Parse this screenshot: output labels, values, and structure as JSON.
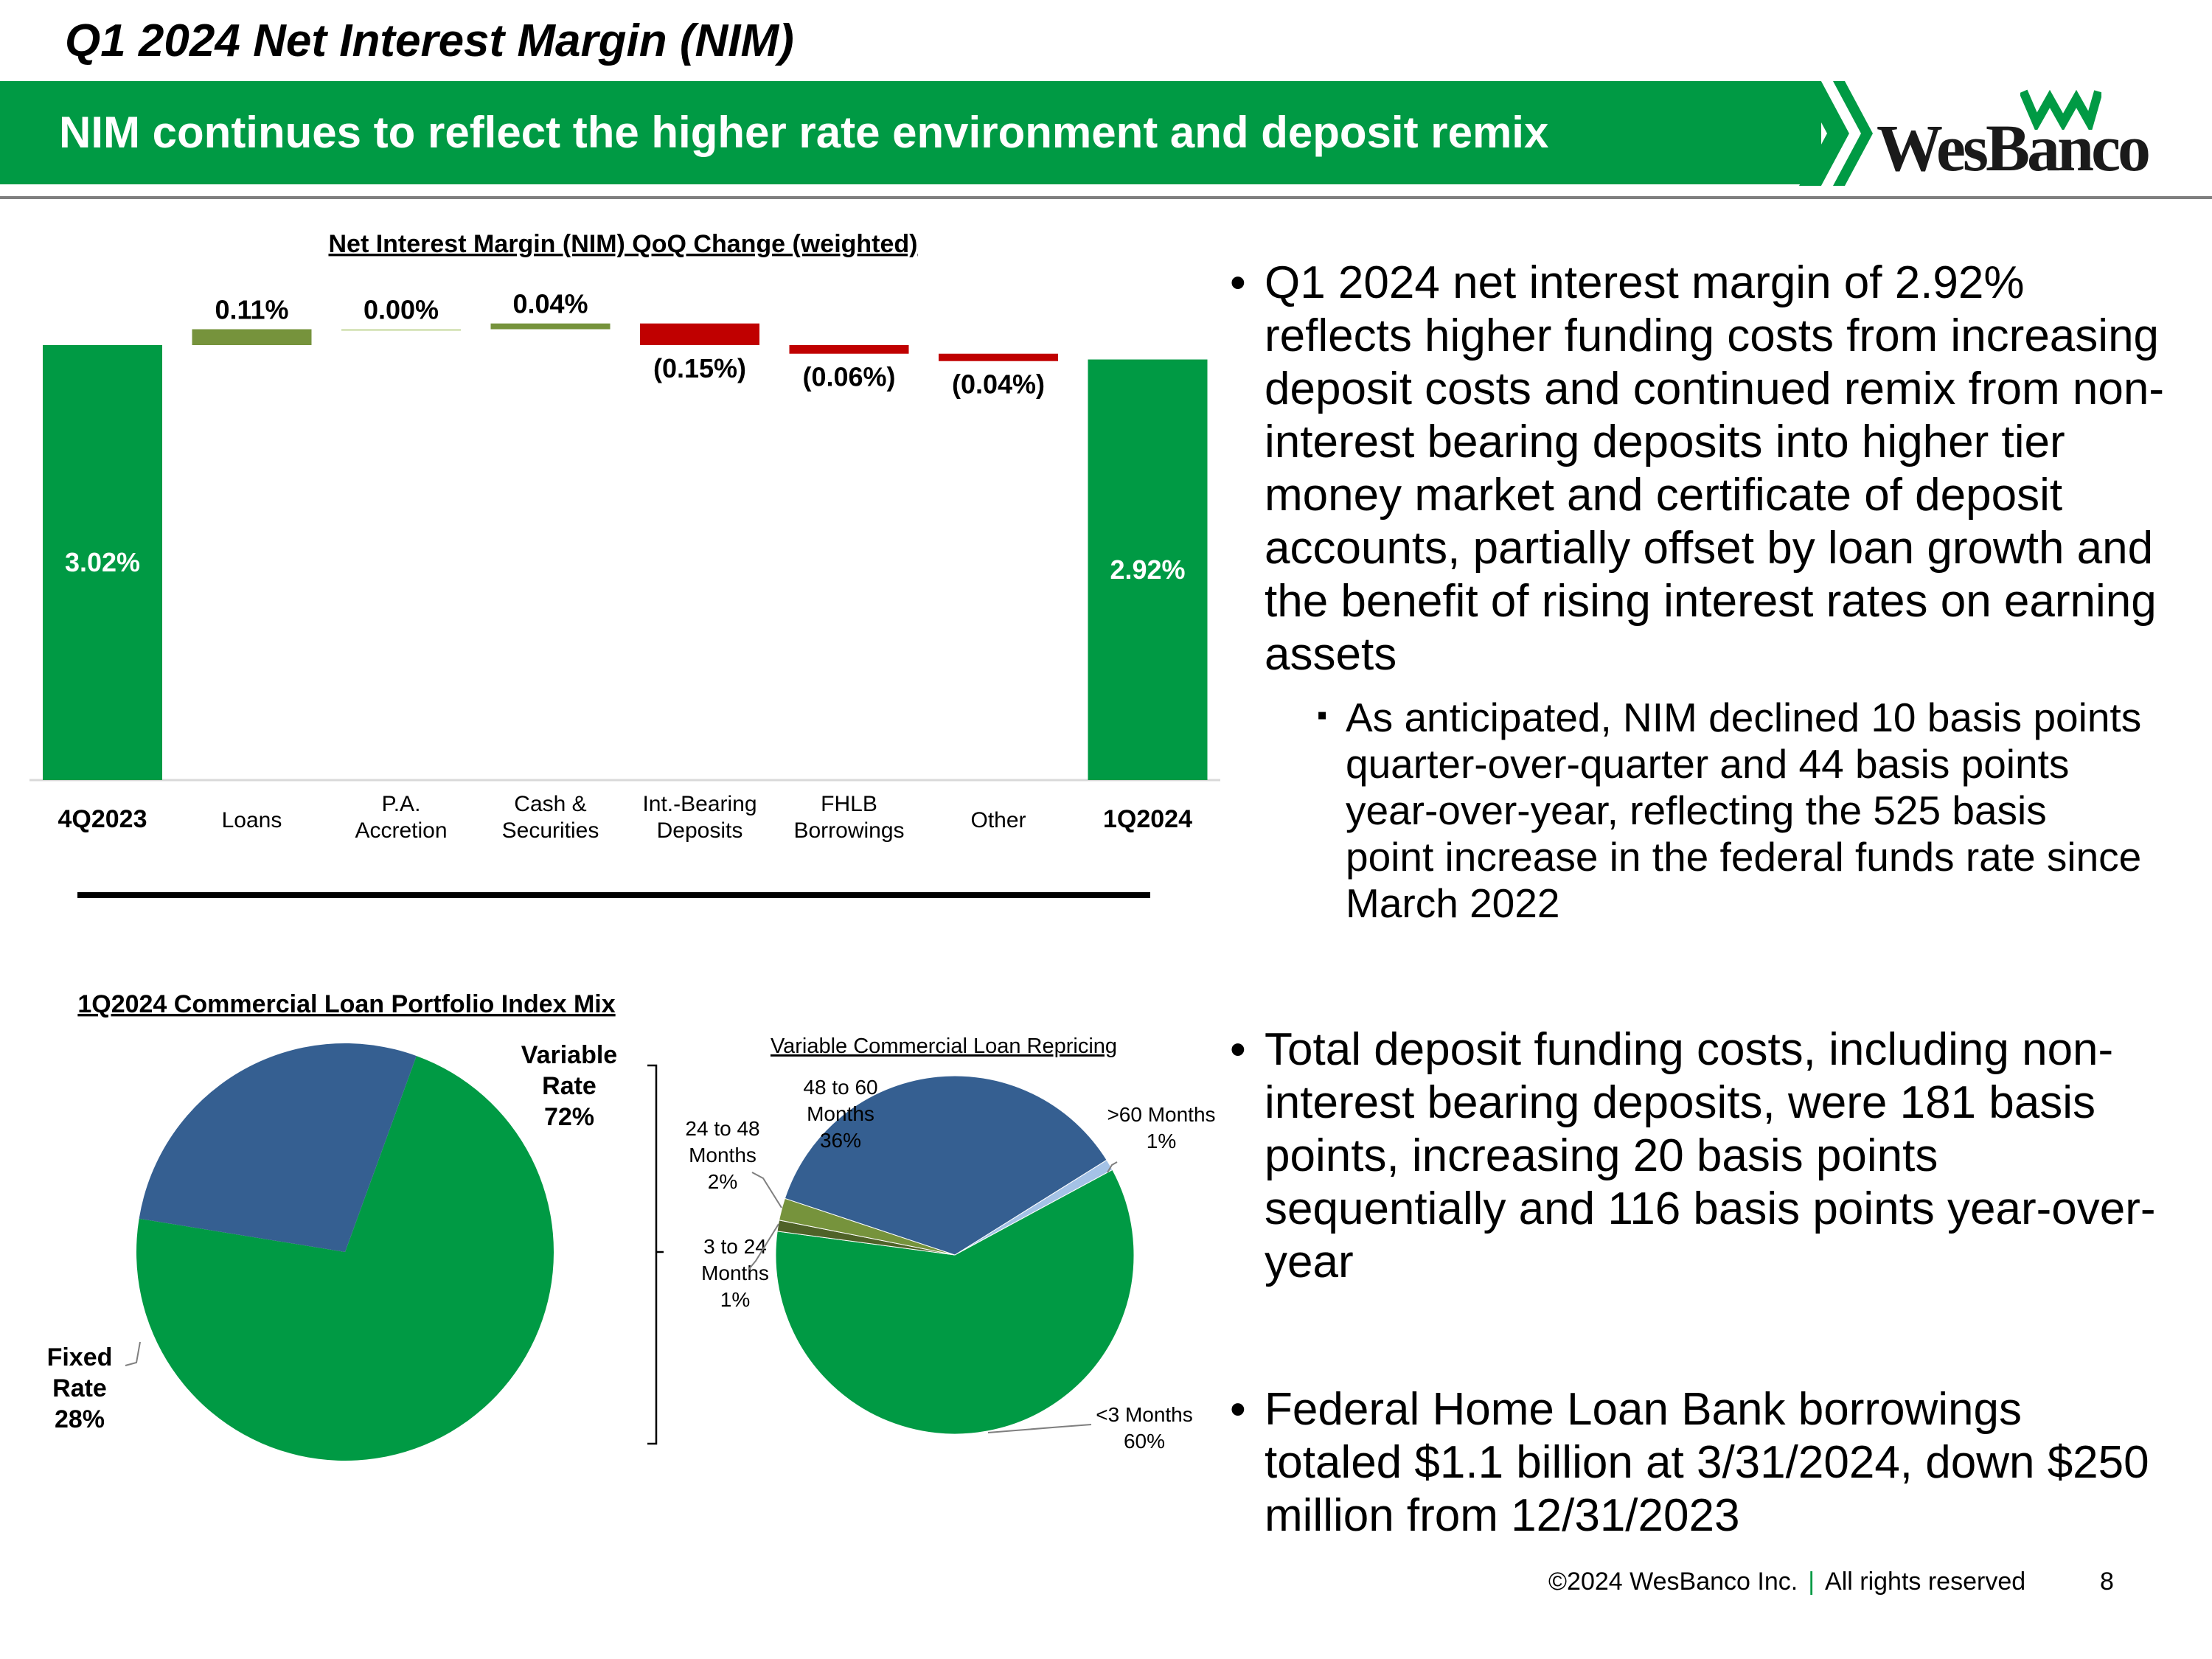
{
  "page": {
    "title": "Q1 2024 Net Interest Margin (NIM)",
    "banner": "NIM continues to reflect the higher rate environment and deposit remix",
    "logo": "WesBanco"
  },
  "colors": {
    "green": "#009a44",
    "olive": "#76933c",
    "red": "#c00000",
    "navy": "#355f91",
    "light_blue": "#a4c2e6",
    "dark_olive": "#4f6228"
  },
  "bullets": [
    {
      "text": "Q1 2024 net interest margin of 2.92% reflects higher funding costs from increasing deposit costs and continued remix from non-interest bearing deposits into higher tier money market and certificate of deposit accounts, partially offset by loan growth and the benefit of rising interest rates on earning assets"
    },
    {
      "sub": "As anticipated, NIM declined 10 basis points quarter-over-quarter and 44 basis points year-over-year, reflecting the 525 basis point increase in the federal funds rate since March 2022"
    },
    {
      "text": "Total deposit funding costs, including non-interest bearing deposits, were 181 basis points, increasing 20 basis points sequentially and 116 basis points year-over-year"
    },
    {
      "text": "Federal Home Loan Bank borrowings totaled $1.1 billion at 3/31/2024, down $250 million from 12/31/2023"
    }
  ],
  "footer": {
    "copyright": "©2024 WesBanco Inc.",
    "rights": "All rights reserved",
    "page_number": "8"
  },
  "chart_data": [
    {
      "type": "bar",
      "subtype": "waterfall",
      "title": "Net Interest Margin (NIM) QoQ Change (weighted)",
      "categories": [
        "4Q2023",
        "Loans",
        "P.A. Accretion",
        "Cash & Securities",
        "Int.-Bearing Deposits",
        "FHLB Borrowings",
        "Other",
        "1Q2024"
      ],
      "values": [
        3.02,
        0.11,
        0.0,
        0.04,
        -0.15,
        -0.06,
        -0.04,
        2.92
      ],
      "labels": [
        "3.02%",
        "0.11%",
        "0.00%",
        "0.04%",
        "(0.15%)",
        "(0.06%)",
        "(0.04%)",
        "2.92%"
      ],
      "kinds": [
        "total",
        "delta",
        "delta",
        "delta",
        "delta",
        "delta",
        "delta",
        "total"
      ],
      "ylim": [
        0,
        3.2
      ]
    },
    {
      "type": "pie",
      "title": "1Q2024 Commercial Loan Portfolio Index Mix",
      "slices": [
        {
          "name": "Variable Rate",
          "label": "72%",
          "value": 72,
          "color": "#009a44"
        },
        {
          "name": "Fixed Rate",
          "label": "28%",
          "value": 28,
          "color": "#355f91"
        }
      ]
    },
    {
      "type": "pie",
      "title": "Variable Commercial Loan Repricing",
      "slices": [
        {
          "name": ">60 Months",
          "label": "1%",
          "value": 1,
          "color": "#a4c2e6"
        },
        {
          "name": "<3 Months",
          "label": "60%",
          "value": 60,
          "color": "#009a44"
        },
        {
          "name": "3 to 24 Months",
          "label": "1%",
          "value": 1,
          "color": "#4f6228"
        },
        {
          "name": "24 to 48 Months",
          "label": "2%",
          "value": 2,
          "color": "#76933c"
        },
        {
          "name": "48 to 60 Months",
          "label": "36%",
          "value": 36,
          "color": "#355f91"
        }
      ]
    }
  ]
}
